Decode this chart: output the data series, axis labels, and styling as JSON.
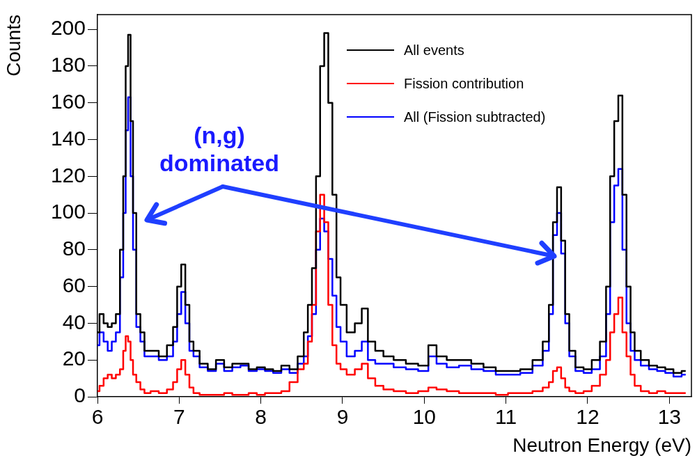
{
  "chart_data": {
    "type": "step",
    "xlabel": "Neutron Energy (eV)",
    "ylabel": "Counts",
    "x": [
      6.0,
      6.05,
      6.1,
      6.15,
      6.2,
      6.25,
      6.3,
      6.33,
      6.36,
      6.39,
      6.42,
      6.45,
      6.5,
      6.55,
      6.6,
      6.7,
      6.8,
      6.9,
      6.95,
      7.0,
      7.05,
      7.1,
      7.15,
      7.2,
      7.3,
      7.4,
      7.5,
      7.6,
      7.7,
      7.8,
      7.9,
      8.0,
      8.1,
      8.2,
      8.3,
      8.4,
      8.5,
      8.55,
      8.6,
      8.65,
      8.7,
      8.75,
      8.8,
      8.85,
      8.9,
      8.95,
      9.0,
      9.1,
      9.2,
      9.27,
      9.35,
      9.45,
      9.55,
      9.7,
      9.85,
      10.0,
      10.1,
      10.2,
      10.35,
      10.5,
      10.65,
      10.8,
      10.95,
      11.1,
      11.25,
      11.4,
      11.5,
      11.55,
      11.6,
      11.65,
      11.7,
      11.75,
      11.8,
      11.9,
      12.0,
      12.1,
      12.2,
      12.25,
      12.3,
      12.35,
      12.4,
      12.45,
      12.5,
      12.55,
      12.6,
      12.7,
      12.8,
      12.9,
      13.0,
      13.1,
      13.2
    ],
    "series": [
      {
        "name": "All events",
        "color": "#000000",
        "values": [
          35,
          45,
          40,
          38,
          40,
          45,
          80,
          120,
          180,
          197,
          150,
          100,
          45,
          35,
          25,
          25,
          22,
          28,
          38,
          60,
          72,
          50,
          30,
          25,
          18,
          15,
          20,
          16,
          18,
          18,
          15,
          16,
          15,
          14,
          17,
          15,
          22,
          35,
          50,
          70,
          120,
          180,
          198,
          160,
          110,
          65,
          50,
          35,
          40,
          48,
          30,
          25,
          22,
          20,
          18,
          17,
          28,
          22,
          20,
          20,
          18,
          16,
          14,
          14,
          15,
          20,
          30,
          50,
          95,
          114,
          85,
          45,
          25,
          16,
          15,
          20,
          30,
          60,
          120,
          150,
          164,
          110,
          60,
          35,
          25,
          20,
          17,
          16,
          15,
          13,
          14
        ]
      },
      {
        "name": "Fission contribution",
        "color": "#ff0000",
        "values": [
          3,
          6,
          10,
          12,
          10,
          12,
          15,
          25,
          33,
          30,
          20,
          12,
          8,
          4,
          2,
          3,
          2,
          4,
          8,
          15,
          20,
          12,
          5,
          2,
          1,
          1,
          1,
          2,
          1,
          1,
          2,
          1,
          2,
          2,
          3,
          8,
          15,
          18,
          30,
          50,
          90,
          110,
          95,
          50,
          28,
          18,
          15,
          12,
          15,
          18,
          10,
          6,
          4,
          3,
          2,
          3,
          5,
          4,
          3,
          2,
          2,
          2,
          1,
          2,
          2,
          3,
          5,
          8,
          14,
          16,
          10,
          5,
          3,
          2,
          3,
          6,
          12,
          20,
          35,
          45,
          54,
          35,
          22,
          12,
          6,
          3,
          2,
          3,
          2,
          2,
          2
        ]
      },
      {
        "name": "All (Fission subtracted)",
        "color": "#0000ff",
        "values": [
          28,
          35,
          30,
          25,
          30,
          35,
          65,
          100,
          145,
          163,
          120,
          80,
          38,
          30,
          22,
          22,
          20,
          22,
          30,
          45,
          57,
          40,
          25,
          22,
          16,
          14,
          18,
          14,
          16,
          17,
          14,
          15,
          14,
          13,
          15,
          13,
          18,
          22,
          33,
          45,
          80,
          97,
          90,
          75,
          55,
          38,
          30,
          22,
          25,
          30,
          20,
          18,
          18,
          16,
          15,
          14,
          22,
          18,
          16,
          17,
          15,
          14,
          12,
          12,
          13,
          17,
          25,
          45,
          88,
          100,
          78,
          40,
          22,
          14,
          13,
          15,
          22,
          45,
          95,
          115,
          124,
          80,
          40,
          25,
          20,
          17,
          15,
          14,
          13,
          11,
          12
        ]
      }
    ],
    "xlim": [
      6,
      13.27
    ],
    "xticks": [
      6,
      7,
      8,
      9,
      10,
      11,
      12,
      13
    ],
    "ylim": [
      0,
      208
    ],
    "yticks": [
      0,
      20,
      40,
      60,
      80,
      100,
      120,
      140,
      160,
      180,
      200
    ],
    "legend": "top right",
    "annotations": [
      "(n,g)\ndominated"
    ]
  }
}
